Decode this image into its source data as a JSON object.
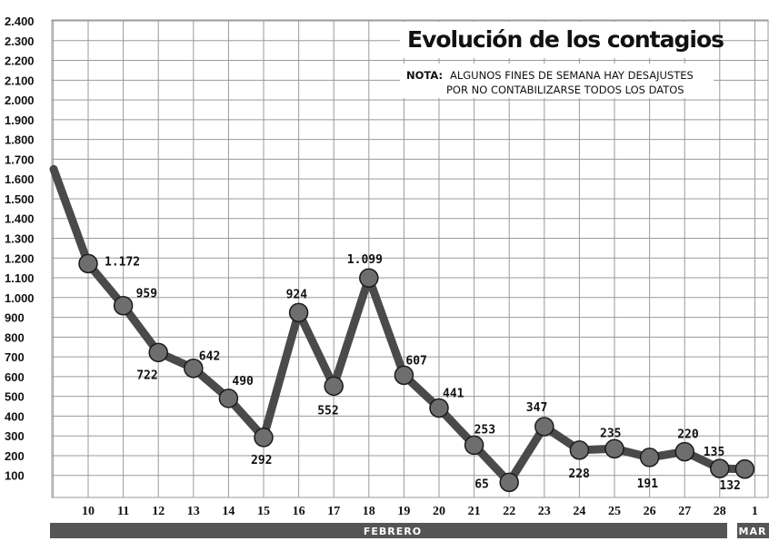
{
  "chart_data": {
    "type": "line",
    "title": "Evolución de los contagios",
    "note_label": "NOTA:",
    "note_lines": [
      "ALGUNOS FINES DE SEMANA HAY DESAJUSTES",
      "POR NO CONTABILIZARSE TODOS LOS DATOS"
    ],
    "ylim": [
      0,
      2400
    ],
    "yticks": [
      "100",
      "200",
      "300",
      "400",
      "500",
      "600",
      "700",
      "800",
      "900",
      "1.000",
      "1.100",
      "1.200",
      "1.300",
      "1.400",
      "1.500",
      "1.600",
      "1.700",
      "1.800",
      "1.900",
      "2.000",
      "2.100",
      "2.200",
      "2.300",
      "2.400"
    ],
    "categories": [
      "10",
      "11",
      "12",
      "13",
      "14",
      "15",
      "16",
      "17",
      "18",
      "19",
      "20",
      "21",
      "22",
      "23",
      "24",
      "25",
      "26",
      "27",
      "28",
      "1"
    ],
    "values": [
      1172,
      959,
      722,
      642,
      490,
      292,
      924,
      552,
      1099,
      607,
      441,
      253,
      65,
      347,
      228,
      235,
      191,
      220,
      135,
      132
    ],
    "value_labels": [
      "1.172",
      "959",
      "722",
      "642",
      "490",
      "292",
      "924",
      "552",
      "1.099",
      "607",
      "441",
      "253",
      "65",
      "347",
      "228",
      "235",
      "191",
      "220",
      "135",
      "132"
    ],
    "lead_in_value": 1650,
    "month_labels": {
      "feb": "FEBRERO",
      "mar": "MAR"
    },
    "grid": true,
    "colors": {
      "line": "#4a4a4a",
      "marker": "#6e6e6e",
      "marker_stroke": "#1a1a1a",
      "grid": "#9a9a9a",
      "band": "#555555"
    }
  }
}
